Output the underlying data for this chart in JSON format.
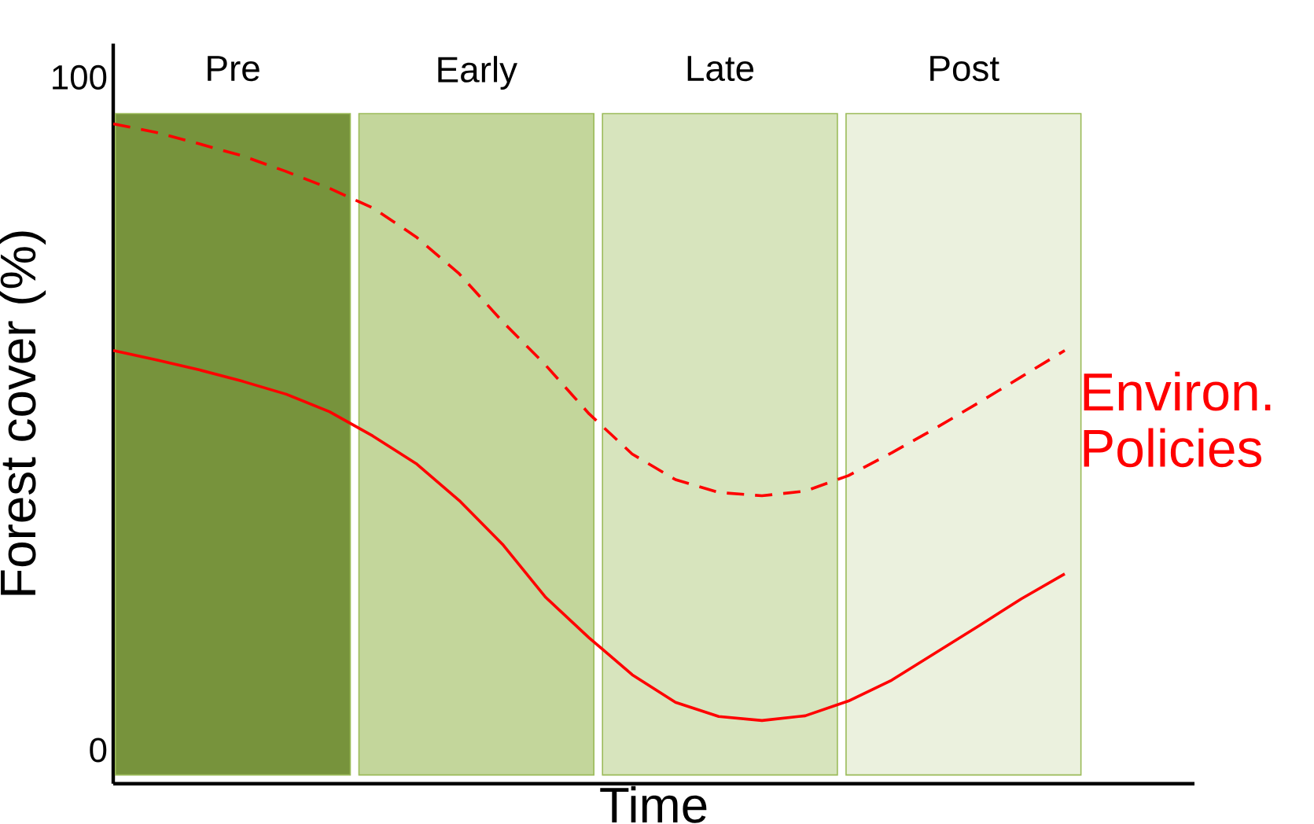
{
  "chart_data": {
    "type": "line",
    "xlabel": "Time",
    "ylabel": "Forest cover (%)",
    "categories": [
      null,
      null,
      null,
      null,
      null,
      null,
      null,
      null,
      null,
      null,
      null,
      null,
      null,
      null,
      null,
      null,
      null,
      null,
      null,
      null,
      null,
      null,
      null
    ],
    "ylim": [
      -5,
      105
    ],
    "yticks": [
      0,
      100
    ],
    "tick_labels": "y",
    "annotations": [
      "Pre",
      "Early",
      "Late",
      "Post"
    ],
    "series": [
      {
        "name": "Environ. Policies",
        "color": "#ff0000",
        "line_style": "dashed",
        "values": [
          93.1,
          91.8,
          90.1,
          88.3,
          86,
          83.5,
          80.6,
          76.3,
          70.8,
          63.7,
          57.2,
          50,
          44,
          40.2,
          38.3,
          37.8,
          38.5,
          40.8,
          44.2,
          47.8,
          51.6,
          55.5,
          59.4
        ]
      },
      {
        "color": "#ff0000",
        "line_style": "solid",
        "values": [
          59.4,
          58,
          56.5,
          54.8,
          52.9,
          50.3,
          46.7,
          42.6,
          37.1,
          30.6,
          22.7,
          16.7,
          11.2,
          7.1,
          5,
          4.4,
          5.1,
          7.3,
          10.4,
          14.4,
          18.4,
          22.5,
          26.2
        ]
      }
    ]
  }
}
